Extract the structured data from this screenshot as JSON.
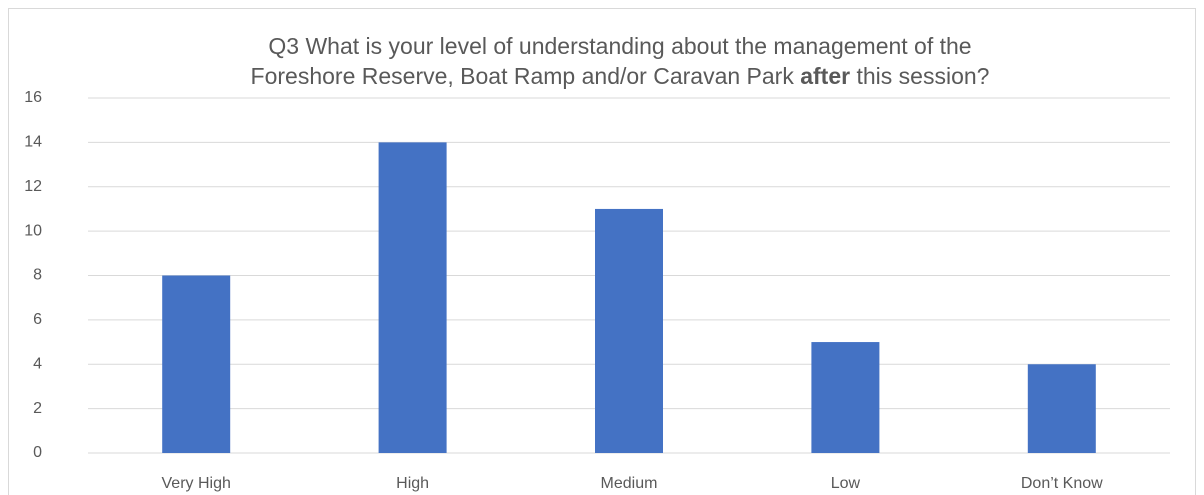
{
  "chart_data": {
    "type": "bar",
    "title": [
      "Q3 What is your level of understanding about the management of the",
      "Foreshore Reserve, Boat Ramp and/or Caravan Park",
      "after",
      "this session?"
    ],
    "categories": [
      "Very High",
      "High",
      "Medium",
      "Low",
      "Don’t Know"
    ],
    "values": [
      8,
      14,
      11,
      5,
      4
    ],
    "color": "#4472c4",
    "ylim": [
      0,
      16
    ],
    "yticks": [
      0,
      2,
      4,
      6,
      8,
      10,
      12,
      14,
      16
    ],
    "grid": true
  }
}
